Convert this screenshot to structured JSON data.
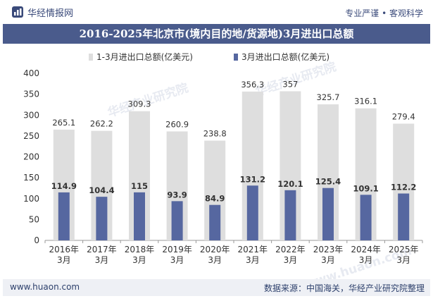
{
  "header": {
    "brand": "华经情报网",
    "right_text": "专业严谨 • 客观科学"
  },
  "chart_data": {
    "type": "bar",
    "title": "2016-2025年北京市(境内目的地/货源地)3月进出口总额",
    "categories": [
      "2016年\n3月",
      "2017年\n3月",
      "2018年\n3月",
      "2019年\n3月",
      "2020年\n3月",
      "2021年\n3月",
      "2022年\n3月",
      "2023年\n3月",
      "2024年\n3月",
      "2025年\n3月"
    ],
    "series": [
      {
        "name": "1-3月进出口总额(亿美元)",
        "color": "#dedede",
        "values": [
          265.1,
          262.2,
          309.3,
          260.9,
          238.8,
          356.3,
          357,
          325.7,
          316.1,
          279.4
        ]
      },
      {
        "name": "3月进出口总额(亿美元)",
        "color": "#5667a0",
        "values": [
          114.9,
          104.4,
          115,
          93.9,
          84.9,
          131.2,
          120.1,
          125.4,
          109.1,
          112.2
        ]
      }
    ],
    "ylim": [
      0,
      400
    ],
    "yticks": [
      0,
      50,
      100,
      150,
      200,
      250,
      300,
      350,
      400
    ],
    "legend_position": "top",
    "grid": false
  },
  "watermarks": [
    "华经产业研究院",
    "www.huaon.com"
  ],
  "footer": {
    "website": "www.huaon.com",
    "source": "数据来源：中国海关，华经产业研究院整理"
  },
  "colors": {
    "title_band": "#4a5b8c",
    "total_bar": "#dedede",
    "month_bar": "#5667a0",
    "footer_bg": "#eef0f5"
  }
}
